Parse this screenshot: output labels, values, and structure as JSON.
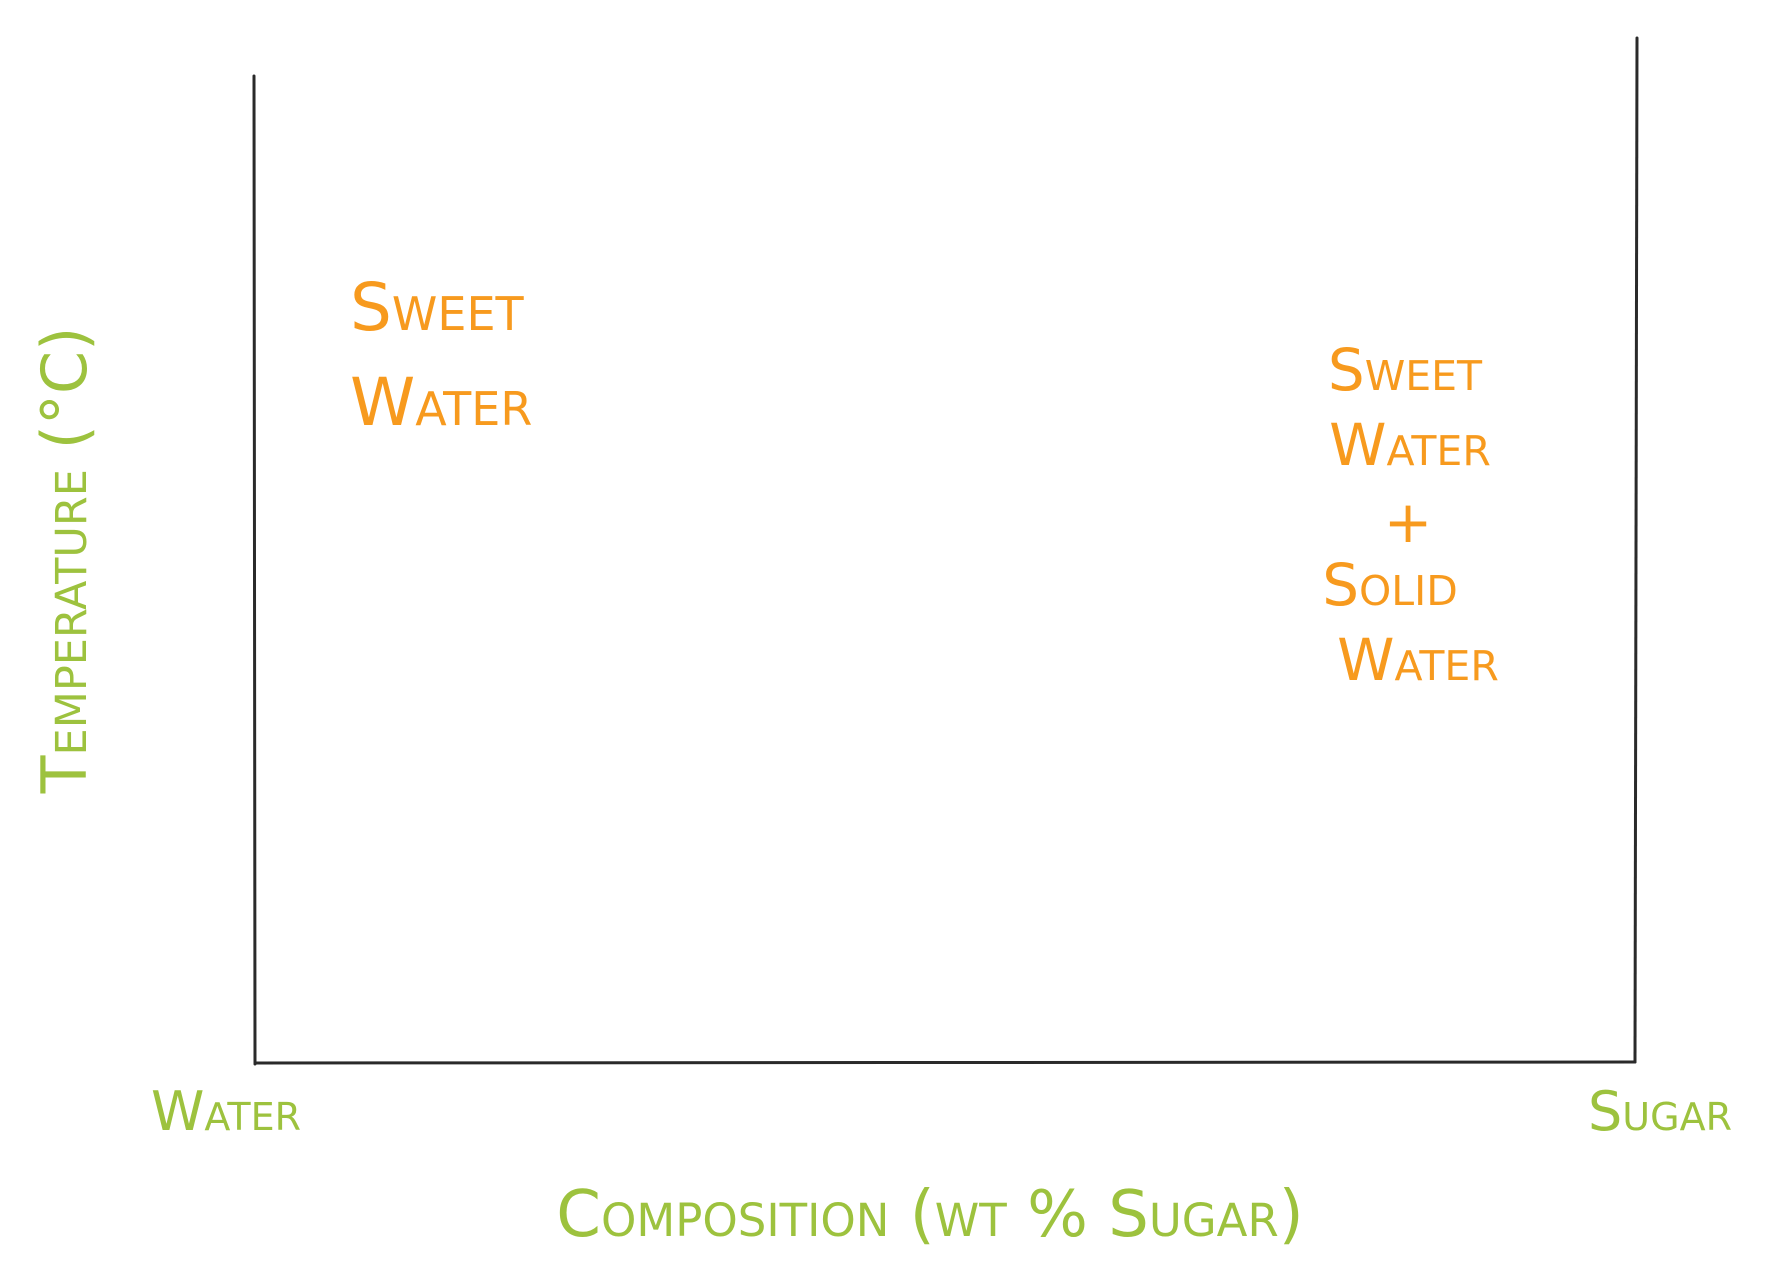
{
  "colors": {
    "axis": "#2a2a2a",
    "axis_label": "#9dc23e",
    "region_label": "#f79a1e",
    "background": "#ffffff"
  },
  "axes": {
    "y_label": "Temperature (°C)",
    "x_label": "Composition (wt % Sugar)",
    "x_left_end": "Water",
    "x_right_end": "Sugar"
  },
  "regions": {
    "left": {
      "line1": "Sweet",
      "line2": "Water"
    },
    "right": {
      "line1": "Sweet",
      "line2": "Water",
      "line3": "+",
      "line4": "Solid",
      "line5": "Water"
    }
  }
}
